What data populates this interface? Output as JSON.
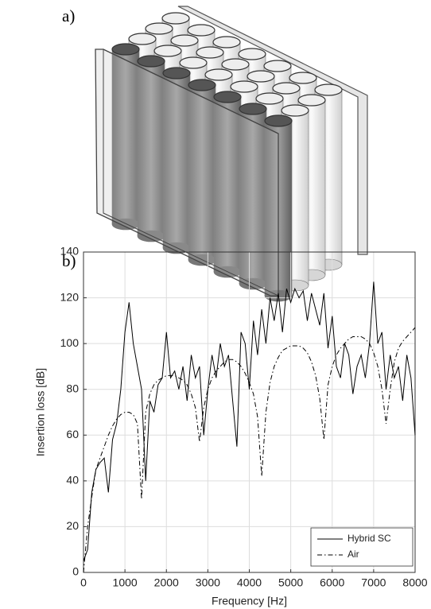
{
  "panel_labels": [
    "a)",
    "b)"
  ],
  "chart_data": {
    "type": "line",
    "xlabel": "Frequency [Hz]",
    "ylabel": "Insertion loss [dB]",
    "x": [
      0,
      100,
      200,
      300,
      400,
      500,
      600,
      700,
      800,
      900,
      1000,
      1100,
      1200,
      1300,
      1400,
      1500,
      1600,
      1700,
      1800,
      1900,
      2000,
      2100,
      2200,
      2300,
      2400,
      2500,
      2600,
      2700,
      2800,
      2900,
      3000,
      3100,
      3200,
      3300,
      3400,
      3500,
      3600,
      3700,
      3800,
      3900,
      4000,
      4100,
      4200,
      4300,
      4400,
      4500,
      4600,
      4700,
      4800,
      4900,
      5000,
      5100,
      5200,
      5300,
      5400,
      5500,
      5600,
      5700,
      5800,
      5900,
      6000,
      6100,
      6200,
      6300,
      6400,
      6500,
      6600,
      6700,
      6800,
      6900,
      7000,
      7100,
      7200,
      7300,
      7400,
      7500,
      7600,
      7700,
      7800,
      7900,
      8000
    ],
    "series": [
      {
        "name": "Hybrid SC",
        "color": "#000000",
        "dash": "solid",
        "values": [
          5,
          10,
          35,
          45,
          48,
          50,
          35,
          58,
          65,
          80,
          105,
          118,
          100,
          90,
          80,
          40,
          75,
          70,
          82,
          85,
          105,
          85,
          88,
          80,
          90,
          75,
          95,
          85,
          90,
          60,
          80,
          95,
          85,
          100,
          90,
          95,
          75,
          55,
          105,
          100,
          80,
          110,
          95,
          115,
          100,
          120,
          110,
          122,
          105,
          124,
          118,
          124,
          120,
          123,
          110,
          122,
          115,
          108,
          122,
          98,
          112,
          90,
          85,
          100,
          95,
          78,
          90,
          95,
          85,
          100,
          127,
          100,
          105,
          80,
          95,
          85,
          90,
          75,
          95,
          85,
          60
        ]
      },
      {
        "name": "Air",
        "color": "#000000",
        "dash": "dashdot",
        "values": [
          0,
          20,
          33,
          45,
          50,
          55,
          60,
          64,
          67,
          69,
          70,
          70,
          69,
          65,
          32,
          70,
          78,
          82,
          84,
          85,
          86,
          86,
          86,
          85,
          84,
          82,
          78,
          72,
          57,
          72,
          80,
          85,
          88,
          90,
          92,
          93,
          93,
          92,
          90,
          87,
          83,
          78,
          68,
          42,
          70,
          83,
          90,
          94,
          97,
          98,
          99,
          99,
          99,
          98,
          96,
          92,
          86,
          76,
          58,
          82,
          90,
          95,
          98,
          100,
          102,
          103,
          103,
          103,
          102,
          100,
          96,
          90,
          80,
          65,
          80,
          92,
          98,
          101,
          103,
          105,
          107
        ]
      }
    ],
    "xlim": [
      0,
      8000
    ],
    "xticks": [
      0,
      1000,
      2000,
      3000,
      4000,
      5000,
      6000,
      7000,
      8000
    ],
    "ylim": [
      0,
      140
    ],
    "yticks": [
      0,
      20,
      40,
      60,
      80,
      100,
      120,
      140
    ],
    "grid": true,
    "legend": "lower right"
  }
}
